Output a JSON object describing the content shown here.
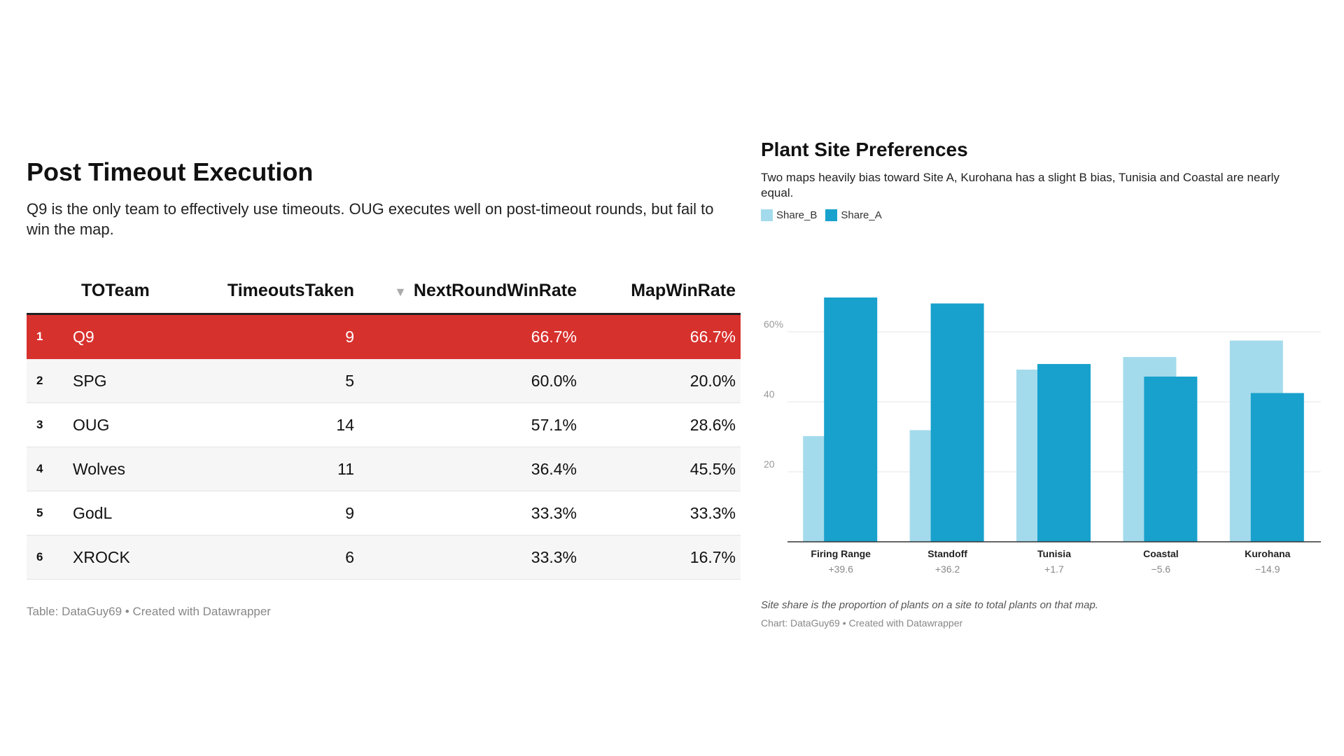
{
  "table": {
    "title": "Post Timeout Execution",
    "description": "Q9 is the only team to effectively use timeouts. OUG executes well on post-timeout rounds, but fail to win the map.",
    "columns": [
      "TOTeam",
      "TimeoutsTaken",
      "NextRoundWinRate",
      "MapWinRate"
    ],
    "sort_indicator": "▼",
    "rows": [
      {
        "rank": "1",
        "team": "Q9",
        "timeouts": "9",
        "next": "66.7%",
        "map": "66.7%"
      },
      {
        "rank": "2",
        "team": "SPG",
        "timeouts": "5",
        "next": "60.0%",
        "map": "20.0%"
      },
      {
        "rank": "3",
        "team": "OUG",
        "timeouts": "14",
        "next": "57.1%",
        "map": "28.6%"
      },
      {
        "rank": "4",
        "team": "Wolves",
        "timeouts": "11",
        "next": "36.4%",
        "map": "45.5%"
      },
      {
        "rank": "5",
        "team": "GodL",
        "timeouts": "9",
        "next": "33.3%",
        "map": "33.3%"
      },
      {
        "rank": "6",
        "team": "XROCK",
        "timeouts": "6",
        "next": "33.3%",
        "map": "16.7%"
      }
    ],
    "footer": "Table: DataGuy69 • Created with Datawrapper",
    "highlight_color": "#d7312e"
  },
  "chart_data": {
    "type": "bar",
    "title": "Plant Site Preferences",
    "subtitle": "Two maps heavily bias toward Site A, Kurohana has a slight B bias, Tunisia and Coastal are nearly equal.",
    "categories": [
      "Firing Range",
      "Standoff",
      "Tunisia",
      "Coastal",
      "Kurohana"
    ],
    "category_sublabels": [
      "+39.6",
      "+36.2",
      "+1.7",
      "−5.6",
      "−14.9"
    ],
    "series": [
      {
        "name": "Share_B",
        "color": "#a4dbec",
        "values": [
          30.2,
          31.9,
          49.2,
          52.8,
          57.5
        ]
      },
      {
        "name": "Share_A",
        "color": "#18a1cd",
        "values": [
          69.8,
          68.1,
          50.8,
          47.2,
          42.5
        ]
      }
    ],
    "yticks": [
      20,
      40,
      60
    ],
    "ytick_labels": [
      "20",
      "40",
      "60%"
    ],
    "ylim": [
      0,
      70
    ],
    "grid": true,
    "legend_position": "top-left",
    "note": "Site share is the proportion of plants on a site to total plants on that map.",
    "footer": "Chart: DataGuy69 • Created with Datawrapper"
  }
}
